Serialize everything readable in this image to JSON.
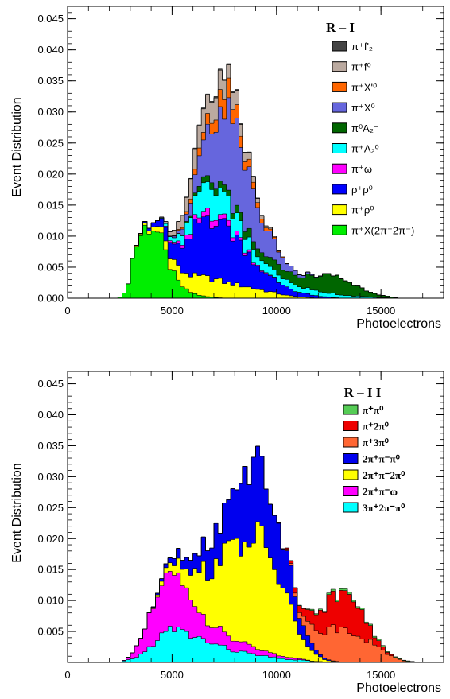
{
  "chart_data": [
    {
      "type": "area",
      "stacked": true,
      "xlabel": "Photoelectrons",
      "ylabel": "Event Distribution",
      "xlim": [
        0,
        18000
      ],
      "ylim": [
        0,
        0.047
      ],
      "xticks": [
        0,
        5000,
        10000,
        15000
      ],
      "xtick_labels": [
        "0",
        "5000",
        "10000",
        "15000"
      ],
      "yticks": [
        0,
        0.005,
        0.01,
        0.015,
        0.02,
        0.025,
        0.03,
        0.035,
        0.04,
        0.045
      ],
      "ytick_labels": [
        "0.000",
        "0.005",
        "0.010",
        "0.015",
        "0.020",
        "0.025",
        "0.030",
        "0.035",
        "0.040",
        "0.045"
      ],
      "legend_title": "R – I",
      "legend_position": "top-right",
      "x": [
        2800,
        3200,
        3600,
        4000,
        4400,
        4800,
        5200,
        5600,
        6000,
        6400,
        6800,
        7200,
        7600,
        8000,
        8400,
        8800,
        9200,
        9600,
        10000,
        10400,
        10800,
        11200,
        11600,
        12000,
        12400,
        12800,
        13200,
        13600,
        14000,
        14400,
        14800,
        15200,
        15600
      ],
      "series": [
        {
          "name": "π⁺X(2π⁺2π⁻)",
          "color": "#00ee00",
          "values": [
            0.001,
            0.008,
            0.011,
            0.012,
            0.01,
            0.006,
            0.003,
            0.0015,
            0.0008,
            0.0004,
            0.0002,
            0.0001,
            0,
            0,
            0,
            0,
            0,
            0,
            0,
            0,
            0,
            0,
            0,
            0,
            0,
            0,
            0,
            0,
            0,
            0,
            0,
            0,
            0
          ]
        },
        {
          "name": "π⁺ρ⁰",
          "color": "#ffff00",
          "values": [
            0,
            0.0001,
            0.0003,
            0.0006,
            0.001,
            0.0015,
            0.002,
            0.0025,
            0.0028,
            0.003,
            0.003,
            0.0028,
            0.0025,
            0.0022,
            0.002,
            0.0017,
            0.0014,
            0.0011,
            0.0008,
            0.0005,
            0.0003,
            0.0002,
            0.0001,
            0,
            0,
            0,
            0,
            0,
            0,
            0,
            0,
            0,
            0
          ]
        },
        {
          "name": "ρ⁺ρ⁰",
          "color": "#0000ff",
          "values": [
            0,
            0,
            0.0001,
            0.0005,
            0.001,
            0.0022,
            0.003,
            0.004,
            0.007,
            0.009,
            0.01,
            0.01,
            0.009,
            0.008,
            0.0065,
            0.005,
            0.0035,
            0.0025,
            0.002,
            0.0015,
            0.001,
            0.0007,
            0.0005,
            0.0003,
            0.0002,
            0.0001,
            0,
            0,
            0,
            0,
            0,
            0,
            0
          ]
        },
        {
          "name": "π⁺ω",
          "color": "#ff00ff",
          "values": [
            0,
            0,
            0,
            0,
            0.0001,
            0.0002,
            0.0004,
            0.0006,
            0.0008,
            0.001,
            0.0011,
            0.001,
            0.0008,
            0.0006,
            0.0004,
            0.0003,
            0.0002,
            0.0001,
            0,
            0,
            0,
            0,
            0,
            0,
            0,
            0,
            0,
            0,
            0,
            0,
            0,
            0,
            0
          ]
        },
        {
          "name": "π⁺A₂⁰",
          "color": "#00ffff",
          "values": [
            0,
            0,
            0,
            0,
            0,
            0.0005,
            0.001,
            0.0018,
            0.003,
            0.004,
            0.0045,
            0.004,
            0.0035,
            0.003,
            0.0025,
            0.002,
            0.0015,
            0.0013,
            0.0012,
            0.0011,
            0.001,
            0.0009,
            0.0008,
            0.0008,
            0.0007,
            0.0006,
            0.0005,
            0.0004,
            0.0003,
            0.0002,
            0.0001,
            0.0001,
            0
          ]
        },
        {
          "name": "π⁰A₂⁻",
          "color": "#006600",
          "values": [
            0,
            0,
            0,
            0,
            0,
            0,
            0,
            0.0002,
            0.0004,
            0.0008,
            0.001,
            0.001,
            0.001,
            0.001,
            0.0012,
            0.0012,
            0.0012,
            0.0013,
            0.0015,
            0.0015,
            0.0016,
            0.0018,
            0.002,
            0.0025,
            0.0028,
            0.003,
            0.0026,
            0.002,
            0.0014,
            0.001,
            0.0006,
            0.0003,
            0.0001
          ]
        },
        {
          "name": "π⁺X⁰",
          "color": "#6666dd",
          "values": [
            0,
            0,
            0,
            0,
            0,
            0,
            0.0003,
            0.001,
            0.002,
            0.005,
            0.008,
            0.011,
            0.013,
            0.013,
            0.011,
            0.009,
            0.006,
            0.004,
            0.0025,
            0.0015,
            0.0008,
            0.0004,
            0.0002,
            0.0001,
            0,
            0,
            0,
            0,
            0,
            0,
            0,
            0,
            0
          ]
        },
        {
          "name": "π⁺X'⁰",
          "color": "#ff6600",
          "values": [
            0,
            0,
            0,
            0,
            0,
            0,
            0.0001,
            0.0003,
            0.0007,
            0.0012,
            0.0018,
            0.0025,
            0.003,
            0.0025,
            0.0018,
            0.0012,
            0.0007,
            0.0004,
            0.0002,
            0.0001,
            0,
            0,
            0,
            0,
            0,
            0,
            0,
            0,
            0,
            0,
            0,
            0,
            0
          ]
        },
        {
          "name": "π⁺f⁰",
          "color": "#bbaaa0",
          "values": [
            0,
            0,
            0,
            0,
            0,
            0.0005,
            0.0012,
            0.002,
            0.003,
            0.0032,
            0.0033,
            0.003,
            0.0027,
            0.0022,
            0.0015,
            0.001,
            0.0006,
            0.0003,
            0.0001,
            0,
            0,
            0,
            0,
            0,
            0,
            0,
            0,
            0,
            0,
            0,
            0,
            0,
            0
          ]
        },
        {
          "name": "π⁺f'₂",
          "color": "#444444",
          "values": [
            0,
            0,
            0,
            0,
            0,
            0,
            0,
            0.0001,
            0.0001,
            0.0002,
            0.0002,
            0.0002,
            0.0002,
            0.0002,
            0.0001,
            0.0001,
            0.0001,
            0,
            0,
            0,
            0,
            0,
            0,
            0,
            0,
            0,
            0,
            0,
            0,
            0,
            0,
            0,
            0
          ]
        }
      ]
    },
    {
      "type": "area",
      "stacked": true,
      "xlabel": "Photoelectrons",
      "ylabel": "Event Distribution",
      "xlim": [
        0,
        18000
      ],
      "ylim": [
        0,
        0.047
      ],
      "xticks": [
        0,
        5000,
        10000,
        15000
      ],
      "xtick_labels": [
        "0",
        "5000",
        "10000",
        "15000"
      ],
      "yticks": [
        0.005,
        0.01,
        0.015,
        0.02,
        0.025,
        0.03,
        0.035,
        0.04,
        0.045
      ],
      "ytick_labels": [
        "0.005",
        "0.010",
        "0.015",
        "0.020",
        "0.025",
        "0.030",
        "0.035",
        "0.040",
        "0.045"
      ],
      "legend_title": "R – I I",
      "legend_position": "top-right",
      "x": [
        2600,
        3000,
        3400,
        3800,
        4200,
        4600,
        5000,
        5400,
        5800,
        6200,
        6600,
        7000,
        7400,
        7800,
        8200,
        8600,
        9000,
        9400,
        9800,
        10200,
        10600,
        11000,
        11400,
        11800,
        12200,
        12600,
        13000,
        13400,
        13800,
        14200,
        14600,
        15000,
        15400,
        15800,
        16200,
        16600
      ],
      "series": [
        {
          "name": "3π⁺2π⁻π⁰",
          "color": "#00ffff",
          "values": [
            0.0001,
            0.0005,
            0.001,
            0.002,
            0.0035,
            0.0045,
            0.0055,
            0.005,
            0.0045,
            0.004,
            0.0035,
            0.003,
            0.0025,
            0.002,
            0.0018,
            0.0015,
            0.0012,
            0.001,
            0.0008,
            0.0006,
            0.0005,
            0.0004,
            0.0003,
            0.0002,
            0.0001,
            0,
            0,
            0,
            0,
            0,
            0,
            0,
            0,
            0,
            0,
            0
          ]
        },
        {
          "name": "2π⁺π⁻ω",
          "color": "#ff00ff",
          "values": [
            0,
            0.0005,
            0.002,
            0.004,
            0.0065,
            0.0085,
            0.0085,
            0.0075,
            0.006,
            0.0045,
            0.0035,
            0.003,
            0.0025,
            0.002,
            0.0016,
            0.0013,
            0.001,
            0.0008,
            0.0006,
            0.0004,
            0.0003,
            0.0002,
            0.0001,
            0,
            0,
            0,
            0,
            0,
            0,
            0,
            0,
            0,
            0,
            0,
            0,
            0
          ]
        },
        {
          "name": "2π⁺π⁻2π⁰",
          "color": "#ffff00",
          "values": [
            0,
            0,
            0,
            0,
            0.0003,
            0.0008,
            0.0015,
            0.0025,
            0.004,
            0.006,
            0.008,
            0.01,
            0.012,
            0.0145,
            0.016,
            0.017,
            0.018,
            0.017,
            0.015,
            0.012,
            0.0085,
            0.005,
            0.0025,
            0.0012,
            0.0005,
            0.0002,
            0.0001,
            0,
            0,
            0,
            0,
            0,
            0,
            0,
            0,
            0
          ]
        },
        {
          "name": "2π⁺π⁻π⁰",
          "color": "#0000ee",
          "values": [
            0,
            0,
            0,
            0,
            0.0002,
            0.0006,
            0.001,
            0.0015,
            0.002,
            0.003,
            0.004,
            0.005,
            0.0065,
            0.008,
            0.01,
            0.012,
            0.013,
            0.012,
            0.01,
            0.008,
            0.006,
            0.0035,
            0.0018,
            0.0008,
            0.0003,
            0.0001,
            0,
            0,
            0,
            0,
            0,
            0,
            0,
            0,
            0,
            0
          ]
        },
        {
          "name": "π⁺3π⁰",
          "color": "#ff6633",
          "values": [
            0,
            0,
            0,
            0,
            0,
            0,
            0,
            0,
            0,
            0,
            0,
            0,
            0,
            0,
            0,
            0,
            0,
            0,
            0,
            0,
            0.0002,
            0.0008,
            0.002,
            0.003,
            0.004,
            0.005,
            0.0055,
            0.0055,
            0.005,
            0.004,
            0.003,
            0.002,
            0.0012,
            0.0006,
            0.0002,
            0.0001
          ]
        },
        {
          "name": "π⁺2π⁰",
          "color": "#ee0000",
          "values": [
            0,
            0,
            0,
            0,
            0,
            0,
            0,
            0,
            0,
            0,
            0,
            0,
            0,
            0,
            0,
            0,
            0,
            0,
            0,
            0.0001,
            0.0004,
            0.0008,
            0.0015,
            0.0025,
            0.004,
            0.005,
            0.006,
            0.0075,
            0.006,
            0.0035,
            0.0015,
            0.0007,
            0.0003,
            0.0001,
            0,
            0
          ]
        },
        {
          "name": "π⁺π⁰",
          "color": "#55cc55",
          "values": [
            0,
            0,
            0,
            0,
            0,
            0,
            0,
            0,
            0,
            0,
            0,
            0,
            0,
            0,
            0,
            0,
            0,
            0,
            0,
            0,
            0,
            0.0001,
            0.0001,
            0.0002,
            0.0002,
            0.0003,
            0.0003,
            0.0003,
            0.0003,
            0.0003,
            0.0002,
            0.0002,
            0.0001,
            0.0001,
            0.0001,
            0
          ]
        }
      ]
    }
  ]
}
